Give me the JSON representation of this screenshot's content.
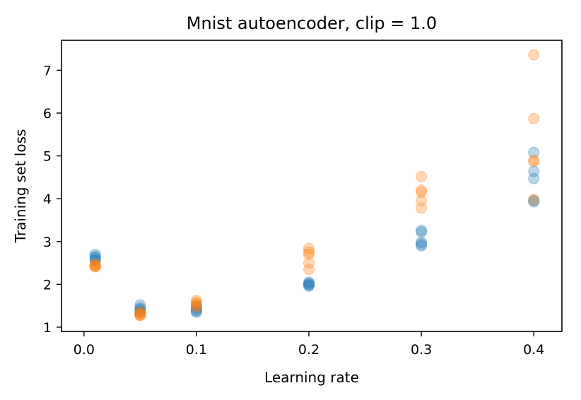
{
  "chart_data": {
    "type": "scatter",
    "title": "Mnist autoencoder, clip = 1.0",
    "xlabel": "Learning rate",
    "ylabel": "Training set loss",
    "xlim": [
      -0.02,
      0.425
    ],
    "ylim": [
      0.9,
      7.7
    ],
    "xticks": [
      0.0,
      0.1,
      0.2,
      0.3,
      0.4
    ],
    "xtick_labels": [
      "0.0",
      "0.1",
      "0.2",
      "0.3",
      "0.4"
    ],
    "yticks": [
      1,
      2,
      3,
      4,
      5,
      6,
      7
    ],
    "ytick_labels": [
      "1",
      "2",
      "3",
      "4",
      "5",
      "6",
      "7"
    ],
    "grid": false,
    "legend": "none",
    "series": [
      {
        "color": "#1f77b4",
        "points": [
          [
            0.01,
            2.7
          ],
          [
            0.01,
            2.65
          ],
          [
            0.01,
            2.62
          ],
          [
            0.01,
            2.58
          ],
          [
            0.01,
            2.55
          ],
          [
            0.05,
            1.52
          ],
          [
            0.05,
            1.45
          ],
          [
            0.05,
            1.42
          ],
          [
            0.05,
            1.38
          ],
          [
            0.05,
            1.35
          ],
          [
            0.1,
            1.5
          ],
          [
            0.1,
            1.45
          ],
          [
            0.1,
            1.4
          ],
          [
            0.1,
            1.38
          ],
          [
            0.1,
            1.35
          ],
          [
            0.2,
            2.05
          ],
          [
            0.2,
            2.02
          ],
          [
            0.2,
            2.0
          ],
          [
            0.2,
            1.98
          ],
          [
            0.2,
            1.96
          ],
          [
            0.3,
            3.26
          ],
          [
            0.3,
            3.22
          ],
          [
            0.3,
            2.98
          ],
          [
            0.3,
            2.94
          ],
          [
            0.3,
            2.9
          ],
          [
            0.4,
            5.08
          ],
          [
            0.4,
            4.64
          ],
          [
            0.4,
            4.47
          ],
          [
            0.4,
            3.96
          ],
          [
            0.4,
            3.93
          ]
        ]
      },
      {
        "color": "#ff7f0e",
        "points": [
          [
            0.01,
            2.47
          ],
          [
            0.01,
            2.45
          ],
          [
            0.01,
            2.43
          ],
          [
            0.01,
            2.42
          ],
          [
            0.01,
            2.41
          ],
          [
            0.05,
            1.35
          ],
          [
            0.05,
            1.32
          ],
          [
            0.05,
            1.3
          ],
          [
            0.05,
            1.28
          ],
          [
            0.05,
            1.27
          ],
          [
            0.1,
            1.62
          ],
          [
            0.1,
            1.58
          ],
          [
            0.1,
            1.55
          ],
          [
            0.1,
            1.5
          ],
          [
            0.1,
            1.47
          ],
          [
            0.2,
            2.84
          ],
          [
            0.2,
            2.75
          ],
          [
            0.2,
            2.7
          ],
          [
            0.2,
            2.5
          ],
          [
            0.2,
            2.35
          ],
          [
            0.3,
            4.52
          ],
          [
            0.3,
            4.2
          ],
          [
            0.3,
            4.15
          ],
          [
            0.3,
            3.95
          ],
          [
            0.3,
            3.78
          ],
          [
            0.4,
            7.36
          ],
          [
            0.4,
            5.87
          ],
          [
            0.4,
            4.9
          ],
          [
            0.4,
            4.87
          ],
          [
            0.4,
            3.98
          ]
        ]
      }
    ]
  }
}
